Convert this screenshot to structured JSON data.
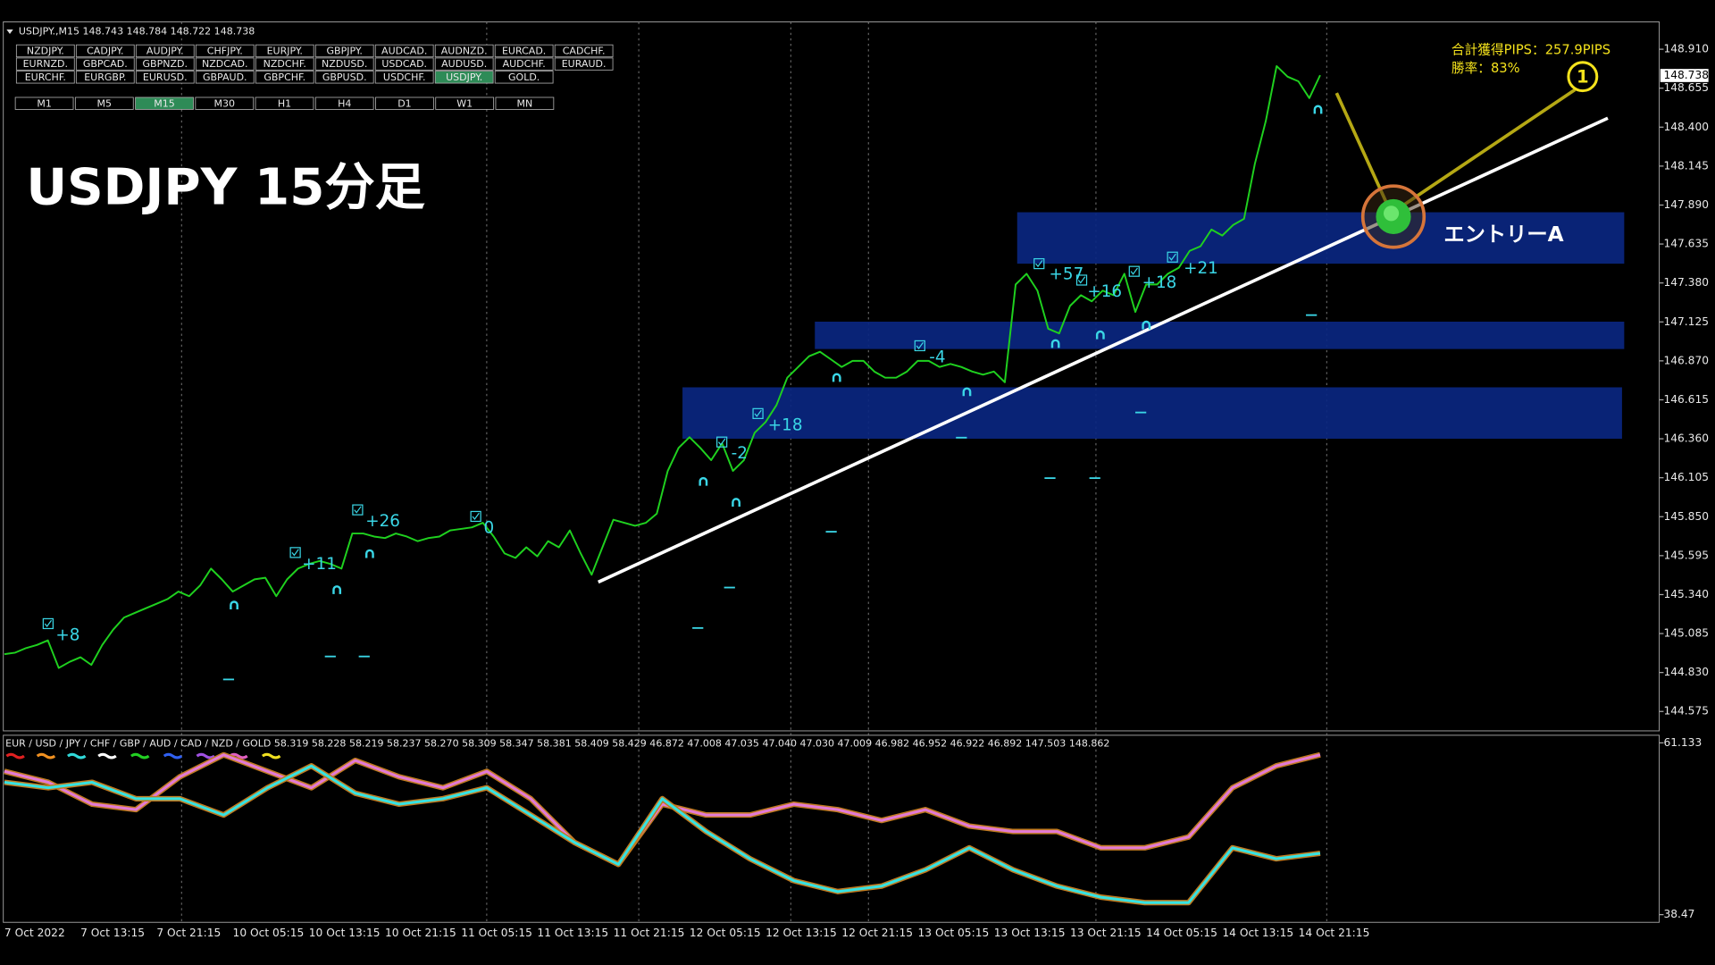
{
  "header": {
    "symbol_info": "USDJPY.,M15  148.743 148.784 148.722 148.738"
  },
  "symbols": [
    [
      "NZDJPY.",
      "CADJPY.",
      "AUDJPY.",
      "CHFJPY.",
      "EURJPY.",
      "GBPJPY.",
      "AUDCAD.",
      "AUDNZD.",
      "EURCAD.",
      "CADCHF."
    ],
    [
      "EURNZD.",
      "GBPCAD.",
      "GBPNZD.",
      "NZDCAD.",
      "NZDCHF.",
      "NZDUSD.",
      "USDCAD.",
      "AUDUSD.",
      "AUDCHF.",
      "EURAUD."
    ],
    [
      "EURCHF.",
      "EURGBP.",
      "EURUSD.",
      "GBPAUD.",
      "GBPCHF.",
      "GBPUSD.",
      "USDCHF.",
      "USDJPY.",
      "GOLD."
    ]
  ],
  "timeframes": [
    "M1",
    "M5",
    "M15",
    "M30",
    "H1",
    "H4",
    "D1",
    "W1",
    "MN"
  ],
  "overlay": {
    "title": "USDJPY 15分足",
    "total_pips": "合計獲得PIPS：257.9PIPS",
    "win_rate": "勝率：83%",
    "entry_label": "エントリーA",
    "step_number": "1"
  },
  "chart_data": [
    {
      "type": "line",
      "color": "#1fd11f",
      "categories": [
        "7 Oct 2022",
        null,
        null,
        null,
        null,
        null,
        null,
        "7 Oct 13:15",
        null,
        null,
        null,
        null,
        null,
        null,
        "7 Oct 21:15",
        null,
        null,
        null,
        null,
        null,
        null,
        "10 Oct 05:15",
        null,
        null,
        null,
        null,
        null,
        null,
        "10 Oct 13:15",
        null,
        null,
        null,
        null,
        null,
        null,
        "10 Oct 21:15",
        null,
        null,
        null,
        null,
        null,
        null,
        "11 Oct 05:15",
        null,
        null,
        null,
        null,
        null,
        null,
        "11 Oct 13:15",
        null,
        null,
        null,
        null,
        null,
        null,
        "11 Oct 21:15",
        null,
        null,
        null,
        null,
        null,
        null,
        "12 Oct 05:15",
        null,
        null,
        null,
        null,
        null,
        null,
        "12 Oct 13:15",
        null,
        null,
        null,
        null,
        null,
        null,
        "12 Oct 21:15",
        null,
        null,
        null,
        null,
        null,
        null,
        "13 Oct 05:15",
        null,
        null,
        null,
        null,
        null,
        null,
        "13 Oct 13:15",
        null,
        null,
        null,
        null,
        null,
        null,
        "13 Oct 21:15",
        null,
        null,
        null,
        null,
        null,
        null,
        "14 Oct 05:15",
        null,
        null,
        null,
        null,
        null,
        null,
        "14 Oct 13:15",
        null,
        null,
        null,
        null,
        null,
        null,
        "14 Oct 21:15",
        null,
        null
      ],
      "values": [
        144.95,
        144.96,
        144.99,
        145.01,
        145.04,
        144.86,
        144.9,
        144.93,
        144.88,
        145.01,
        145.11,
        145.19,
        145.22,
        145.25,
        145.28,
        145.31,
        145.36,
        145.33,
        145.4,
        145.51,
        145.44,
        145.36,
        145.4,
        145.44,
        145.45,
        145.33,
        145.44,
        145.51,
        145.54,
        145.56,
        145.54,
        145.51,
        145.74,
        145.74,
        145.72,
        145.71,
        145.74,
        145.72,
        145.69,
        145.71,
        145.72,
        145.76,
        145.77,
        145.78,
        145.81,
        145.72,
        145.61,
        145.58,
        145.65,
        145.59,
        145.69,
        145.65,
        145.76,
        145.61,
        145.47,
        145.65,
        145.83,
        145.81,
        145.79,
        145.81,
        145.87,
        146.15,
        146.3,
        146.37,
        146.3,
        146.22,
        146.33,
        146.15,
        146.22,
        146.4,
        146.47,
        146.58,
        146.76,
        146.83,
        146.9,
        146.93,
        146.88,
        146.83,
        146.87,
        146.87,
        146.8,
        146.76,
        146.76,
        146.8,
        146.87,
        146.87,
        146.83,
        146.85,
        146.83,
        146.8,
        146.78,
        146.8,
        146.73,
        147.37,
        147.44,
        147.33,
        147.08,
        147.05,
        147.23,
        147.3,
        147.26,
        147.33,
        147.3,
        147.44,
        147.19,
        147.37,
        147.37,
        147.44,
        147.48,
        147.59,
        147.62,
        147.73,
        147.69,
        147.76,
        147.8,
        148.16,
        148.44,
        148.8,
        148.73,
        148.7,
        148.59,
        148.74
      ],
      "ylim": [
        144.448,
        149.089
      ],
      "yticks": [
        {
          "value": 148.91,
          "label": "148.910"
        },
        148.655,
        {
          "value": 148.4,
          "label": "148.400"
        },
        148.145,
        {
          "value": 147.89,
          "label": "147.890"
        },
        147.635,
        {
          "value": 147.38,
          "label": "147.380"
        },
        147.125,
        {
          "value": 146.87,
          "label": "146.870"
        },
        146.615,
        {
          "value": 146.36,
          "label": "146.360"
        },
        146.105,
        {
          "value": 145.85,
          "label": "145.850"
        },
        145.595,
        {
          "value": 145.34,
          "label": "145.340"
        },
        145.085,
        {
          "value": 144.83,
          "label": "144.830"
        },
        144.575
      ],
      "last_price": 148.738,
      "trades": [
        "+8",
        "+11",
        "+26",
        "0",
        "-2",
        "+18",
        "-4",
        "+57",
        "+16",
        "+18",
        "+21"
      ]
    },
    {
      "type": "line",
      "legend_text": "EUR / USD / JPY / CHF / GBP / AUD / CAD / NZD / GOLD  58.319 58.228 58.219 58.237 58.270 58.309 58.347 58.381 58.409 58.429 46.872 47.008 47.035 47.040 47.030 47.009 46.982 46.952 46.922 46.892 147.503 148.862",
      "series": [
        {
          "color": "#e27ad6",
          "values": [
            57.38,
            55.94,
            53.05,
            52.33,
            56.66,
            59.55,
            57.38,
            55.21,
            58.82,
            56.66,
            55.21,
            57.38,
            53.77,
            48.0,
            45.11,
            53.05,
            51.61,
            51.61,
            53.05,
            52.33,
            50.89,
            52.33,
            50.16,
            49.44,
            49.44,
            47.28,
            47.28,
            48.72,
            55.21,
            58.1,
            59.55
          ]
        },
        {
          "color": "#35e3e3",
          "values": [
            55.94,
            55.21,
            55.94,
            53.77,
            53.77,
            51.61,
            55.21,
            58.1,
            54.49,
            53.05,
            53.77,
            55.21,
            51.61,
            48.0,
            45.11,
            53.77,
            49.44,
            45.84,
            42.95,
            41.51,
            42.23,
            44.39,
            47.28,
            44.39,
            42.23,
            40.78,
            40.06,
            40.06,
            47.28,
            45.84,
            46.56
          ]
        }
      ],
      "ylim": [
        37.6,
        62.14
      ],
      "yticks": [
        61.133,
        38.47
      ]
    }
  ]
}
